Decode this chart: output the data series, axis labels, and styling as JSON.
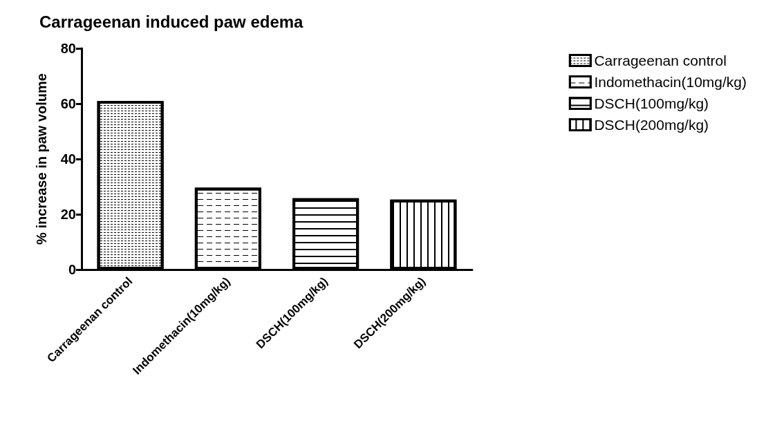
{
  "chart_data": {
    "type": "bar",
    "title": "Carrageenan induced paw edema",
    "ylabel": "% increase in paw volume",
    "categories": [
      "Carrageenan control",
      "Indomethacin(10mg/kg)",
      "DSCH(100mg/kg)",
      "DSCH(200mg/kg)"
    ],
    "stacked": true,
    "series": [
      {
        "name": "Carrageenan control",
        "color": "#ffffff",
        "values": [
          61,
          null,
          null,
          null
        ]
      },
      {
        "name": "Indomethacin(10mg/kg)",
        "color": "#ffffff",
        "values": [
          null,
          29.6,
          null,
          null
        ]
      },
      {
        "name": "DSCH(100mg/kg)",
        "color": "#ffffff",
        "values": [
          null,
          null,
          25.8,
          null
        ]
      },
      {
        "name": "DSCH(200mg/kg)",
        "color": "#ffffff",
        "values": [
          null,
          null,
          null,
          25.3
        ]
      }
    ],
    "ylim": [
      0,
      80
    ],
    "yticks": [
      0,
      20,
      40,
      60,
      80
    ],
    "legend": "top right"
  }
}
